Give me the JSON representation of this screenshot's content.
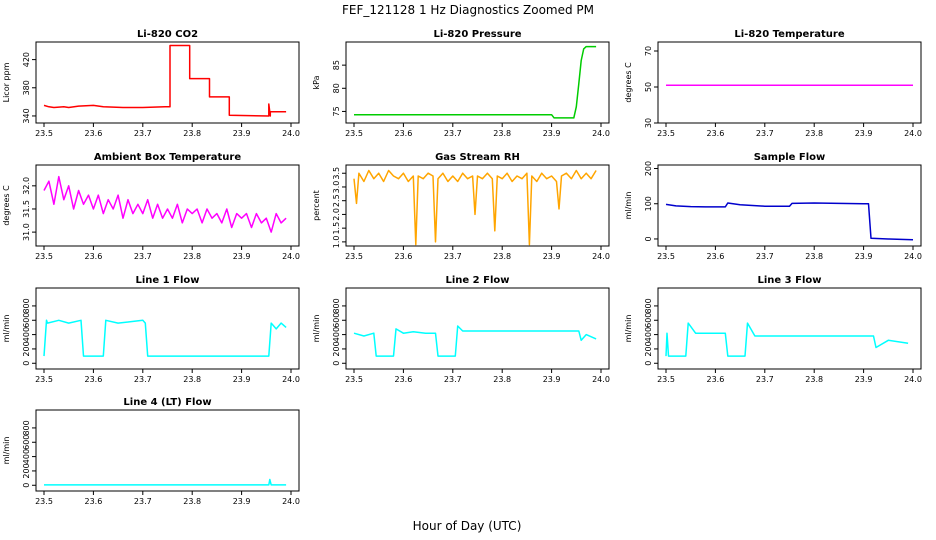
{
  "figure": {
    "title": "FEF_121128  1 Hz Diagnostics Zoomed PM",
    "xlabel": "Hour of Day (UTC)"
  },
  "chart_data": [
    {
      "type": "line",
      "title": "Li-820 CO2",
      "ylabel": "Licor ppm",
      "color": "#ff0000",
      "xlim": [
        23.5,
        24.0
      ],
      "ylim": [
        330,
        445
      ],
      "xticks": [
        23.5,
        23.6,
        23.7,
        23.8,
        23.9,
        24.0
      ],
      "xtick_labels": [
        "23.5",
        "23.6",
        "23.7",
        "23.8",
        "23.9",
        "24.0"
      ],
      "yticks": [
        340,
        380,
        420
      ],
      "ytick_labels": [
        "340",
        "380",
        "420"
      ],
      "series": [
        {
          "x": [
            23.5,
            23.51,
            23.52,
            23.54,
            23.55,
            23.57,
            23.6,
            23.62,
            23.66,
            23.7,
            23.745,
            23.755,
            23.755,
            23.795,
            23.795,
            23.835,
            23.835,
            23.875,
            23.875,
            23.955,
            23.955,
            23.958,
            23.958,
            23.99
          ],
          "y": [
            355,
            353,
            352,
            353,
            352,
            354,
            355,
            353,
            352,
            352,
            353,
            353,
            440,
            440,
            393,
            393,
            367,
            367,
            341,
            340,
            357,
            340,
            346,
            346
          ]
        }
      ]
    },
    {
      "type": "line",
      "title": "Li-820 Pressure",
      "ylabel": "kPa",
      "color": "#00cc00",
      "xlim": [
        23.5,
        24.0
      ],
      "ylim": [
        72.5,
        90
      ],
      "xticks": [
        23.5,
        23.6,
        23.7,
        23.8,
        23.9,
        24.0
      ],
      "xtick_labels": [
        "23.5",
        "23.6",
        "23.7",
        "23.8",
        "23.9",
        "24.0"
      ],
      "yticks": [
        75,
        80,
        85
      ],
      "ytick_labels": [
        "75",
        "80",
        "85"
      ],
      "series": [
        {
          "x": [
            23.5,
            23.6,
            23.7,
            23.8,
            23.9,
            23.905,
            23.945,
            23.95,
            23.955,
            23.96,
            23.965,
            23.97,
            23.98,
            23.99
          ],
          "y": [
            74.3,
            74.3,
            74.3,
            74.3,
            74.3,
            73.6,
            73.6,
            76,
            81,
            86,
            88.5,
            89,
            89,
            89
          ]
        }
      ]
    },
    {
      "type": "line",
      "title": "Li-820 Temperature",
      "ylabel": "degrees C",
      "color": "#ff00ff",
      "xlim": [
        23.5,
        24.0
      ],
      "ylim": [
        30,
        75
      ],
      "xticks": [
        23.5,
        23.6,
        23.7,
        23.8,
        23.9,
        24.0
      ],
      "xtick_labels": [
        "23.5",
        "23.6",
        "23.7",
        "23.8",
        "23.9",
        "24.0"
      ],
      "yticks": [
        30,
        50,
        70
      ],
      "ytick_labels": [
        "30",
        "50",
        "70"
      ],
      "series": [
        {
          "x": [
            23.5,
            24.0
          ],
          "y": [
            51,
            51
          ]
        }
      ]
    },
    {
      "type": "line",
      "title": "Ambient Box Temperature",
      "ylabel": "degrees C",
      "color": "#ff00ff",
      "xlim": [
        23.5,
        24.0
      ],
      "ylim": [
        30.7,
        32.45
      ],
      "xticks": [
        23.5,
        23.6,
        23.7,
        23.8,
        23.9,
        24.0
      ],
      "xtick_labels": [
        "23.5",
        "23.6",
        "23.7",
        "23.8",
        "23.9",
        "24.0"
      ],
      "yticks": [
        31.0,
        31.5,
        32.0
      ],
      "ytick_labels": [
        "31.0",
        "31.5",
        "32.0"
      ],
      "series": [
        {
          "x": [
            23.5,
            23.51,
            23.52,
            23.53,
            23.54,
            23.55,
            23.56,
            23.57,
            23.58,
            23.59,
            23.6,
            23.61,
            23.62,
            23.63,
            23.64,
            23.65,
            23.66,
            23.67,
            23.68,
            23.69,
            23.7,
            23.71,
            23.72,
            23.73,
            23.74,
            23.75,
            23.76,
            23.77,
            23.78,
            23.79,
            23.8,
            23.81,
            23.82,
            23.83,
            23.84,
            23.85,
            23.86,
            23.87,
            23.88,
            23.89,
            23.9,
            23.91,
            23.92,
            23.93,
            23.94,
            23.95,
            23.96,
            23.97,
            23.98,
            23.99
          ],
          "y": [
            31.9,
            32.1,
            31.6,
            32.2,
            31.7,
            32.0,
            31.5,
            31.9,
            31.6,
            31.8,
            31.5,
            31.8,
            31.4,
            31.7,
            31.5,
            31.8,
            31.3,
            31.7,
            31.4,
            31.6,
            31.4,
            31.7,
            31.3,
            31.6,
            31.3,
            31.5,
            31.3,
            31.6,
            31.2,
            31.5,
            31.4,
            31.5,
            31.2,
            31.5,
            31.3,
            31.4,
            31.2,
            31.5,
            31.1,
            31.4,
            31.3,
            31.4,
            31.1,
            31.4,
            31.2,
            31.3,
            31.0,
            31.4,
            31.2,
            31.3
          ]
        }
      ]
    },
    {
      "type": "line",
      "title": "Gas Stream RH",
      "ylabel": "percent",
      "color": "#ffa500",
      "xlim": [
        23.5,
        24.0
      ],
      "ylim": [
        0.85,
        3.8
      ],
      "xticks": [
        23.5,
        23.6,
        23.7,
        23.8,
        23.9,
        24.0
      ],
      "xtick_labels": [
        "23.5",
        "23.6",
        "23.7",
        "23.8",
        "23.9",
        "24.0"
      ],
      "yticks": [
        1.0,
        1.5,
        2.0,
        2.5,
        3.0,
        3.5
      ],
      "ytick_labels": [
        "1.0",
        "1.5",
        "2.0",
        "2.5",
        "3.0",
        "3.5"
      ],
      "series": [
        {
          "x": [
            23.5,
            23.505,
            23.51,
            23.52,
            23.53,
            23.54,
            23.55,
            23.56,
            23.57,
            23.58,
            23.59,
            23.6,
            23.61,
            23.62,
            23.625,
            23.63,
            23.64,
            23.65,
            23.66,
            23.665,
            23.67,
            23.68,
            23.69,
            23.7,
            23.71,
            23.72,
            23.73,
            23.74,
            23.745,
            23.75,
            23.76,
            23.77,
            23.78,
            23.785,
            23.79,
            23.8,
            23.81,
            23.82,
            23.83,
            23.84,
            23.85,
            23.855,
            23.86,
            23.87,
            23.88,
            23.89,
            23.9,
            23.91,
            23.915,
            23.92,
            23.93,
            23.94,
            23.95,
            23.96,
            23.97,
            23.98,
            23.99
          ],
          "y": [
            3.3,
            2.4,
            3.5,
            3.2,
            3.6,
            3.3,
            3.5,
            3.2,
            3.6,
            3.4,
            3.3,
            3.5,
            3.2,
            3.4,
            0.9,
            3.4,
            3.3,
            3.5,
            3.4,
            1.0,
            3.3,
            3.5,
            3.2,
            3.4,
            3.2,
            3.5,
            3.3,
            3.4,
            2.0,
            3.4,
            3.3,
            3.5,
            3.3,
            1.4,
            3.4,
            3.3,
            3.5,
            3.2,
            3.4,
            3.3,
            3.5,
            0.9,
            3.4,
            3.2,
            3.5,
            3.3,
            3.4,
            3.2,
            2.2,
            3.4,
            3.5,
            3.3,
            3.6,
            3.3,
            3.5,
            3.3,
            3.6
          ]
        }
      ]
    },
    {
      "type": "line",
      "title": "Sample Flow",
      "ylabel": "ml/min",
      "color": "#0000cc",
      "xlim": [
        23.5,
        24.0
      ],
      "ylim": [
        -20,
        210
      ],
      "xticks": [
        23.5,
        23.6,
        23.7,
        23.8,
        23.9,
        24.0
      ],
      "xtick_labels": [
        "23.5",
        "23.6",
        "23.7",
        "23.8",
        "23.9",
        "24.0"
      ],
      "yticks": [
        0,
        100,
        200
      ],
      "ytick_labels": [
        "0",
        "100",
        "200"
      ],
      "series": [
        {
          "x": [
            23.5,
            23.52,
            23.55,
            23.58,
            23.62,
            23.625,
            23.65,
            23.7,
            23.75,
            23.755,
            23.8,
            23.85,
            23.9,
            23.91,
            23.915,
            23.95,
            24.0
          ],
          "y": [
            98,
            94,
            92,
            91,
            91,
            102,
            97,
            93,
            93,
            101,
            102,
            101,
            100,
            100,
            2,
            0,
            -2
          ]
        }
      ]
    },
    {
      "type": "line",
      "title": "Line 1 Flow",
      "ylabel": "ml/min",
      "color": "#00ffff",
      "xlim": [
        23.5,
        24.0
      ],
      "ylim": [
        -80,
        1050
      ],
      "xticks": [
        23.5,
        23.6,
        23.7,
        23.8,
        23.9,
        24.0
      ],
      "xtick_labels": [
        "23.5",
        "23.6",
        "23.7",
        "23.8",
        "23.9",
        "24.0"
      ],
      "yticks": [
        0,
        200,
        400,
        600,
        800
      ],
      "ytick_labels": [
        "0",
        "200",
        "400",
        "600",
        "800"
      ],
      "series": [
        {
          "x": [
            23.5,
            23.505,
            23.507,
            23.53,
            23.55,
            23.575,
            23.58,
            23.62,
            23.625,
            23.65,
            23.7,
            23.705,
            23.71,
            23.75,
            23.8,
            23.9,
            23.955,
            23.96,
            23.97,
            23.98,
            23.99
          ],
          "y": [
            100,
            600,
            560,
            600,
            560,
            600,
            100,
            100,
            600,
            560,
            600,
            560,
            100,
            100,
            100,
            100,
            100,
            560,
            480,
            560,
            500
          ]
        }
      ]
    },
    {
      "type": "line",
      "title": "Line 2 Flow",
      "ylabel": "ml/min",
      "color": "#00ffff",
      "xlim": [
        23.5,
        24.0
      ],
      "ylim": [
        -80,
        1050
      ],
      "xticks": [
        23.5,
        23.6,
        23.7,
        23.8,
        23.9,
        24.0
      ],
      "xtick_labels": [
        "23.5",
        "23.6",
        "23.7",
        "23.8",
        "23.9",
        "24.0"
      ],
      "yticks": [
        0,
        200,
        400,
        600,
        800
      ],
      "ytick_labels": [
        "0",
        "200",
        "400",
        "600",
        "800"
      ],
      "series": [
        {
          "x": [
            23.5,
            23.52,
            23.54,
            23.545,
            23.58,
            23.585,
            23.6,
            23.62,
            23.645,
            23.665,
            23.67,
            23.705,
            23.71,
            23.72,
            23.8,
            23.9,
            23.955,
            23.96,
            23.97,
            23.99
          ],
          "y": [
            420,
            380,
            420,
            100,
            100,
            480,
            420,
            440,
            420,
            420,
            100,
            100,
            520,
            450,
            450,
            450,
            450,
            320,
            400,
            340
          ]
        }
      ]
    },
    {
      "type": "line",
      "title": "Line 3 Flow",
      "ylabel": "ml/min",
      "color": "#00ffff",
      "xlim": [
        23.5,
        24.0
      ],
      "ylim": [
        -80,
        1050
      ],
      "xticks": [
        23.5,
        23.6,
        23.7,
        23.8,
        23.9,
        24.0
      ],
      "xtick_labels": [
        "23.5",
        "23.6",
        "23.7",
        "23.8",
        "23.9",
        "24.0"
      ],
      "yticks": [
        0,
        200,
        400,
        600,
        800
      ],
      "ytick_labels": [
        "0",
        "200",
        "400",
        "600",
        "800"
      ],
      "series": [
        {
          "x": [
            23.5,
            23.502,
            23.505,
            23.54,
            23.545,
            23.56,
            23.62,
            23.625,
            23.66,
            23.665,
            23.68,
            23.75,
            23.8,
            23.85,
            23.9,
            23.92,
            23.925,
            23.95,
            23.99
          ],
          "y": [
            100,
            420,
            100,
            100,
            560,
            420,
            420,
            100,
            100,
            560,
            380,
            380,
            380,
            380,
            380,
            380,
            220,
            320,
            280
          ]
        }
      ]
    },
    {
      "type": "line",
      "title": "Line 4 (LT) Flow",
      "ylabel": "ml/min",
      "color": "#00ffff",
      "xlim": [
        23.5,
        24.0
      ],
      "ylim": [
        -80,
        1050
      ],
      "xticks": [
        23.5,
        23.6,
        23.7,
        23.8,
        23.9,
        24.0
      ],
      "xtick_labels": [
        "23.5",
        "23.6",
        "23.7",
        "23.8",
        "23.9",
        "24.0"
      ],
      "yticks": [
        0,
        200,
        400,
        600,
        800
      ],
      "ytick_labels": [
        "0",
        "200",
        "400",
        "600",
        "800"
      ],
      "series": [
        {
          "x": [
            23.5,
            23.6,
            23.7,
            23.8,
            23.9,
            23.955,
            23.957,
            23.96,
            23.99
          ],
          "y": [
            5,
            5,
            5,
            5,
            5,
            5,
            80,
            5,
            5
          ]
        }
      ]
    }
  ]
}
